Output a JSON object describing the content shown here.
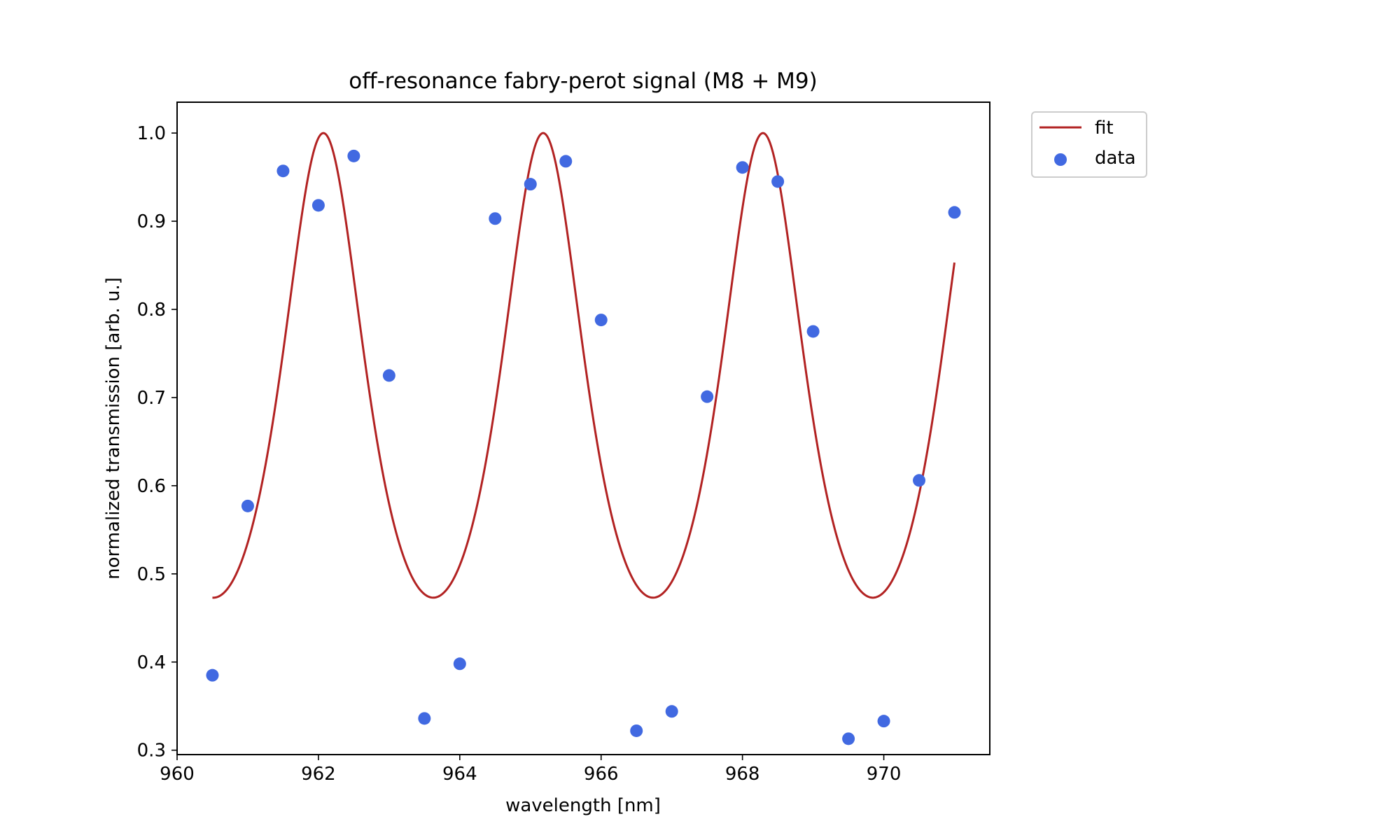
{
  "chart_data": {
    "type": "line",
    "title": "off-resonance fabry-perot signal (M8 + M9)",
    "xlabel": "wavelength [nm]",
    "ylabel": "normalized transmission [arb. u.]",
    "xlim": [
      960.5,
      971.0
    ],
    "ylim": [
      0.295,
      1.035
    ],
    "x_ticks": [
      960,
      962,
      964,
      966,
      968,
      970
    ],
    "y_ticks": [
      0.3,
      0.4,
      0.5,
      0.6,
      0.7,
      0.8,
      0.9,
      1.0
    ],
    "x_tick_labels": [
      "960",
      "962",
      "964",
      "966",
      "968",
      "970"
    ],
    "y_tick_labels": [
      "0.3",
      "0.4",
      "0.5",
      "0.6",
      "0.7",
      "0.8",
      "0.9",
      "1.0"
    ],
    "grid": false,
    "legend_position": "outside upper right",
    "series": [
      {
        "name": "fit",
        "kind": "line",
        "color": "#b22222",
        "x_range": [
          960.5,
          971.0
        ],
        "model": {
          "form": "airy",
          "baseline": 0.473,
          "peak": 1.0,
          "period_nm": 3.11,
          "first_peak_nm": 962.07
        }
      },
      {
        "name": "data",
        "kind": "scatter",
        "color": "#4169e1",
        "x": [
          960.5,
          961.0,
          961.5,
          962.0,
          962.5,
          963.0,
          963.5,
          964.0,
          964.5,
          965.0,
          965.5,
          966.0,
          966.5,
          967.0,
          967.5,
          968.0,
          968.5,
          969.0,
          969.5,
          970.0,
          970.5,
          971.0
        ],
        "y": [
          0.385,
          0.577,
          0.957,
          0.918,
          0.974,
          0.725,
          0.336,
          0.398,
          0.903,
          0.942,
          0.968,
          0.788,
          0.322,
          0.344,
          0.701,
          0.961,
          0.945,
          0.775,
          0.313,
          0.333,
          0.606,
          0.91
        ]
      }
    ]
  }
}
